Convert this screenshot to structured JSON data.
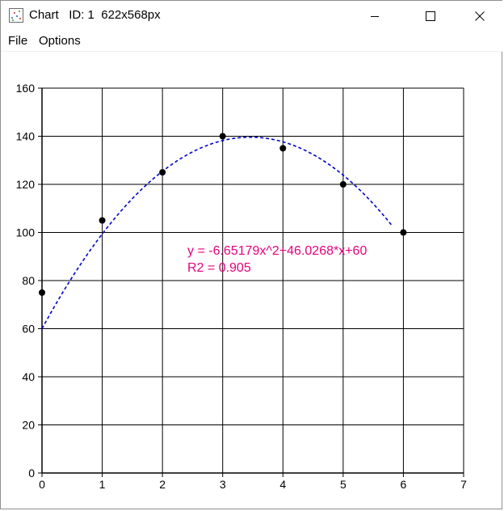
{
  "window": {
    "title": "Chart",
    "id_label": "ID: 1",
    "size_label": "622x568px",
    "icon": "chart-app-icon"
  },
  "title_controls": {
    "minimize_icon": "minimize-icon",
    "maximize_icon": "maximize-icon",
    "close_icon": "close-icon"
  },
  "menu": {
    "items": [
      "File",
      "Options"
    ]
  },
  "chart_data": {
    "type": "scatter",
    "x_ticks": [
      0,
      1,
      2,
      3,
      4,
      5,
      6,
      7
    ],
    "y_ticks": [
      0,
      20,
      40,
      60,
      80,
      100,
      120,
      140,
      160
    ],
    "xlim": [
      0,
      7
    ],
    "ylim": [
      0,
      160
    ],
    "grid": true,
    "points": [
      {
        "x": 0,
        "y": 75
      },
      {
        "x": 1,
        "y": 105
      },
      {
        "x": 2,
        "y": 125
      },
      {
        "x": 3,
        "y": 140
      },
      {
        "x": 4,
        "y": 135
      },
      {
        "x": 5,
        "y": 120
      },
      {
        "x": 6,
        "y": 100
      }
    ],
    "fit": {
      "a": -6.65179,
      "b": 46.0268,
      "c": 60,
      "x_range": [
        0,
        5.8
      ],
      "equation": "y = -6.65179x^2+46.0268*x+60",
      "r2_label": "R2 = 0.905"
    },
    "colors": {
      "points": "#000000",
      "fit_line": "#0000cc",
      "annotation": "#e6007e",
      "grid": "#000000"
    }
  }
}
